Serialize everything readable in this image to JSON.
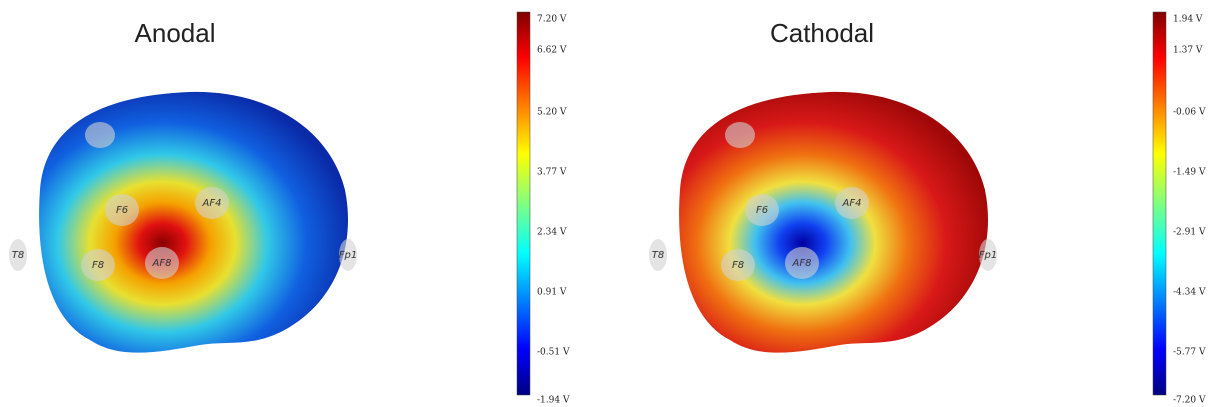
{
  "panels": [
    {
      "title": "Anodal",
      "colorbar_labels": [
        "7.20 V",
        "6.62 V",
        "5.20 V",
        "3.77 V",
        "2.34 V",
        "0.91 V",
        "-0.51 V",
        "-1.94 V"
      ],
      "electrodes": [
        "T8",
        "F6",
        "AF4",
        "F8",
        "AF8",
        "Fp1"
      ]
    },
    {
      "title": "Cathodal",
      "colorbar_labels": [
        "1.94 V",
        "1.37 V",
        "-0.06 V",
        "-1.49 V",
        "-2.91 V",
        "-4.34 V",
        "-5.77 V",
        "-7.20 V"
      ],
      "electrodes": [
        "T8",
        "F6",
        "AF4",
        "F8",
        "AF8",
        "Fp1"
      ]
    }
  ]
}
